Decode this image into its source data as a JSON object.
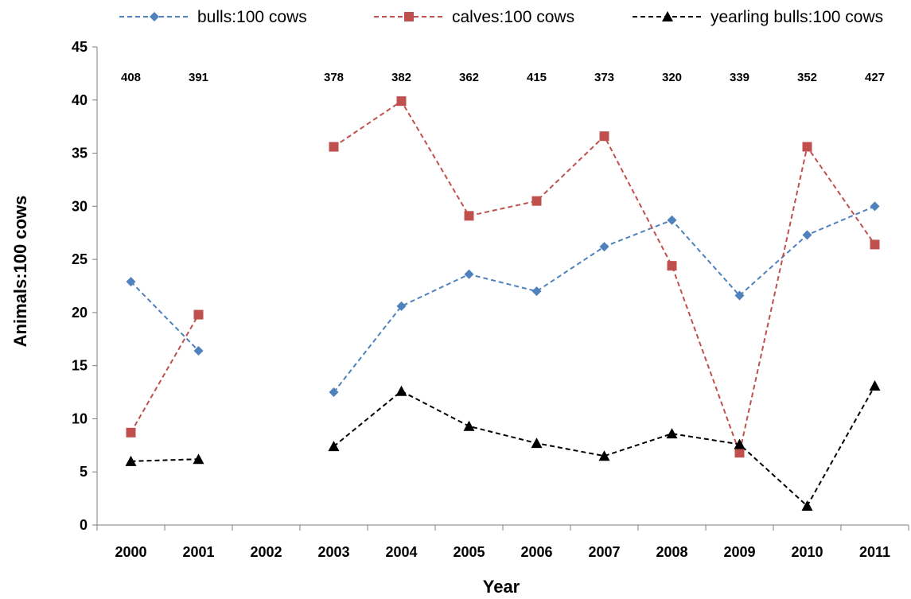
{
  "chart_data": {
    "type": "line",
    "xlabel": "Year",
    "ylabel": "Animals:100 cows",
    "ylim": [
      0,
      45
    ],
    "yticks": [
      "0",
      "5",
      "10",
      "15",
      "20",
      "25",
      "30",
      "35",
      "40",
      "45"
    ],
    "categories": [
      "2000",
      "2001",
      "2002",
      "2003",
      "2004",
      "2005",
      "2006",
      "2007",
      "2008",
      "2009",
      "2010",
      "2011"
    ],
    "sample_sizes": [
      "408",
      "391",
      "",
      "378",
      "382",
      "362",
      "415",
      "373",
      "320",
      "339",
      "352",
      "427"
    ],
    "legend_position": "top",
    "grid": false,
    "series": [
      {
        "name": "bulls:100 cows",
        "color": "#4f81bd",
        "marker": "diamond",
        "line_style": "dashed",
        "values": [
          22.9,
          16.4,
          null,
          12.5,
          20.6,
          23.6,
          22.0,
          26.2,
          28.7,
          21.6,
          27.3,
          30.0
        ]
      },
      {
        "name": "calves:100 cows",
        "color": "#c0504d",
        "marker": "square",
        "line_style": "dashed",
        "values": [
          8.7,
          19.8,
          null,
          35.6,
          39.9,
          29.1,
          30.5,
          36.6,
          24.4,
          6.8,
          35.6,
          26.4
        ]
      },
      {
        "name": "yearling bulls:100 cows",
        "color": "#000000",
        "marker": "triangle",
        "line_style": "dashed",
        "values": [
          6.0,
          6.2,
          null,
          7.4,
          12.6,
          9.3,
          7.7,
          6.5,
          8.6,
          7.6,
          1.8,
          13.1
        ]
      }
    ]
  }
}
